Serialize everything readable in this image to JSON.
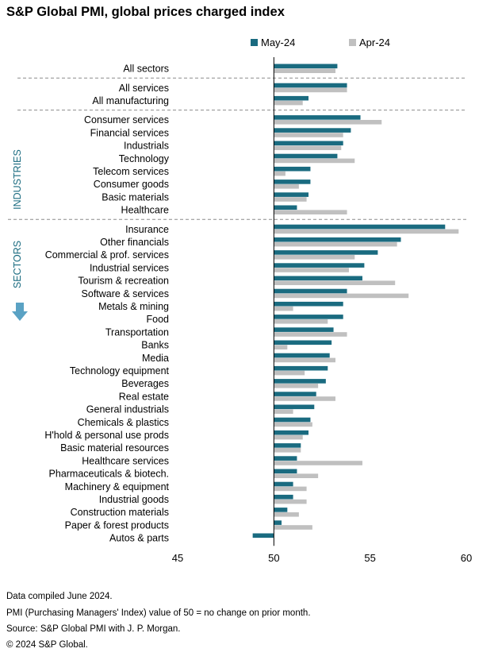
{
  "title": "S&P Global PMI, global prices charged index",
  "legend": [
    {
      "label": "May-24",
      "color": "#1A6B80"
    },
    {
      "label": "Apr-24",
      "color": "#C0C0C0"
    }
  ],
  "group_labels": {
    "industries": "INDUSTRIES",
    "sectors": "SECTORS"
  },
  "down_arrow_icon": "down-arrow-icon",
  "footer": [
    "Data compiled June 2024.",
    "PMI (Purchasing Managers' Index) value of 50 = no change on prior month.",
    "Source: S&P Global PMI with J. P. Morgan.",
    "© 2024 S&P Global."
  ],
  "chart_data": {
    "type": "bar",
    "orientation": "horizontal",
    "title": "S&P Global PMI, global prices charged index",
    "xlim": [
      45,
      60
    ],
    "baseline": 50,
    "xticks": [
      45,
      50,
      55,
      60
    ],
    "legend_position": "top",
    "categories": [
      "All sectors",
      "All services",
      "All manufacturing",
      "Consumer services",
      "Financial services",
      "Industrials",
      "Technology",
      "Telecom services",
      "Consumer goods",
      "Basic materials",
      "Healthcare",
      "Insurance",
      "Other financials",
      "Commercial & prof. services",
      "Industrial services",
      "Tourism & recreation",
      "Software & services",
      "Metals & mining",
      "Food",
      "Transportation",
      "Banks",
      "Media",
      "Technology equipment",
      "Beverages",
      "Real estate",
      "General industrials",
      "Chemicals & plastics",
      "H'hold & personal use prods",
      "Basic material resources",
      "Healthcare services",
      "Pharmaceuticals & biotech.",
      "Machinery & equipment",
      "Industrial goods",
      "Construction materials",
      "Paper & forest products",
      "Autos & parts"
    ],
    "groups": [
      {
        "start": 0,
        "end": 0
      },
      {
        "start": 1,
        "end": 2
      },
      {
        "start": 3,
        "end": 10,
        "label": "INDUSTRIES"
      },
      {
        "start": 11,
        "end": 35,
        "label": "SECTORS"
      }
    ],
    "series": [
      {
        "name": "May-24",
        "color": "#1A6B80",
        "values": [
          53.3,
          53.8,
          51.8,
          54.5,
          54.0,
          53.6,
          53.3,
          51.9,
          51.9,
          51.8,
          51.2,
          58.9,
          56.6,
          55.4,
          54.7,
          54.6,
          53.8,
          53.6,
          53.6,
          53.1,
          53.0,
          52.9,
          52.8,
          52.7,
          52.2,
          52.1,
          51.9,
          51.8,
          51.4,
          51.2,
          51.2,
          51.0,
          51.0,
          50.7,
          50.4,
          48.9
        ]
      },
      {
        "name": "Apr-24",
        "color": "#C0C0C0",
        "values": [
          53.2,
          53.8,
          51.5,
          55.6,
          53.6,
          53.5,
          54.2,
          50.6,
          51.3,
          51.7,
          53.8,
          59.6,
          56.4,
          54.2,
          53.9,
          56.3,
          57.0,
          51.0,
          52.8,
          53.8,
          50.7,
          53.2,
          51.6,
          52.3,
          53.2,
          51.0,
          52.0,
          51.5,
          51.4,
          54.6,
          52.3,
          51.7,
          51.7,
          51.3,
          52.0,
          50.0
        ]
      }
    ]
  }
}
